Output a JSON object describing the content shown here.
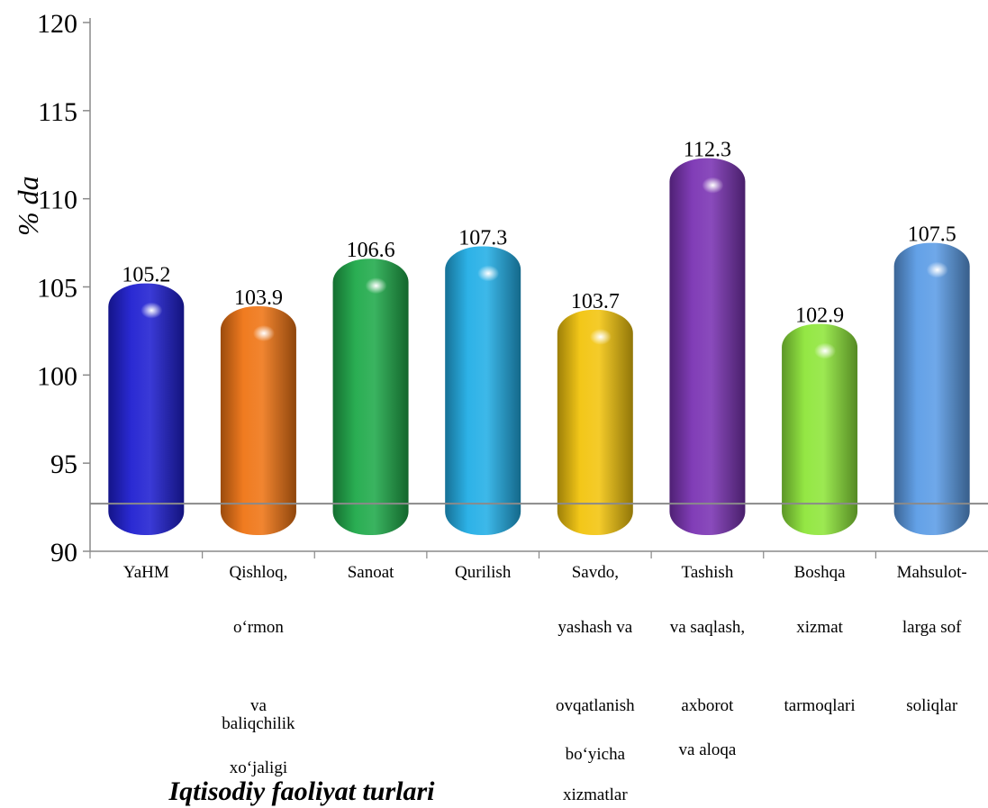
{
  "chart_data": {
    "type": "bar",
    "ylabel": "% da",
    "xlabel": "Iqtisodiy faoliyat turlari",
    "ylim": [
      90,
      120
    ],
    "yticks": [
      "90",
      "95",
      "100",
      "105",
      "110",
      "115",
      "120"
    ],
    "baseline": 92.7,
    "grid": false,
    "legend": "none",
    "categories": [
      [
        "YaHM"
      ],
      [
        "Qishloq,",
        "o‘rmon",
        "",
        "va",
        "baliqchilik",
        "xo‘jaligi"
      ],
      [
        "Sanoat"
      ],
      [
        "Qurilish"
      ],
      [
        "Savdo,",
        "yashash va",
        "",
        "ovqatlanish",
        "bo‘yicha",
        "xizmatlar"
      ],
      [
        "Tashish",
        "va saqlash,",
        "",
        "axborot",
        "va aloqa"
      ],
      [
        "Boshqa",
        "xizmat",
        "",
        "tarmoqlari"
      ],
      [
        "Mahsulot-",
        "larga sof",
        "",
        "soliqlar"
      ]
    ],
    "values": [
      105.2,
      103.9,
      106.6,
      107.3,
      103.7,
      112.3,
      102.9,
      107.5
    ],
    "value_labels": [
      "105.2",
      "103.9",
      "106.6",
      "107.3",
      "103.7",
      "112.3",
      "102.9",
      "107.5"
    ],
    "colors": [
      "#1f1fd1",
      "#ef7414",
      "#1faa4a",
      "#22aee6",
      "#f2c40d",
      "#7a33b3",
      "#8ee63a",
      "#5b9ce6"
    ]
  }
}
